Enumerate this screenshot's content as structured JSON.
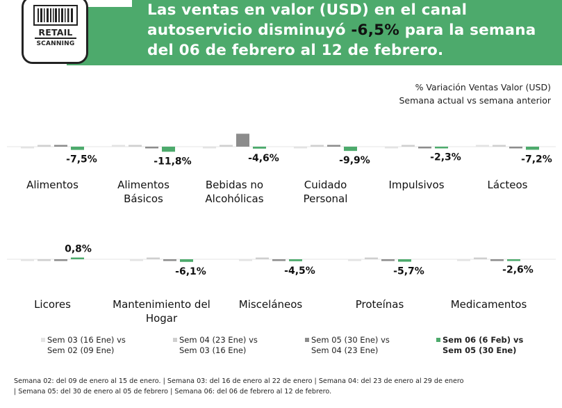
{
  "logo": {
    "line1": "RETAIL",
    "line2": "SCANNING"
  },
  "header": {
    "headline_before": "Las ventas en valor (USD) en el canal autoservicio disminuyó ",
    "headline_highlight": "-6,5%",
    "headline_after": " para la semana del 06 de febrero al 12 de febrero."
  },
  "subtitle": {
    "line1": "% Variación Ventas Valor (USD)",
    "line2": "Semana actual vs semana anterior"
  },
  "chart_data": {
    "type": "bar",
    "series": [
      {
        "name": "Sem 03 (16 Ene) vs Sem 02 (09 Ene)",
        "color": "#e3e3e3"
      },
      {
        "name": "Sem 04 (23 Ene) vs Sem 03 (16 Ene)",
        "color": "#cfcfcf"
      },
      {
        "name": "Sem 05 (30 Ene) vs Sem 04 (23 Ene)",
        "color": "#8c8c8c"
      },
      {
        "name": "Sem 06 (6 Feb) vs Sem 05 (30 Ene)",
        "color": "#4daa6c"
      }
    ],
    "panels": [
      {
        "categories": [
          {
            "label": [
              "Alimentos"
            ],
            "values": [
              -1.0,
              0.5,
              2.0,
              -7.5
            ],
            "data_label": "-7,5%"
          },
          {
            "label": [
              "Alimentos",
              "Básicos"
            ],
            "values": [
              2.5,
              1.0,
              -0.5,
              -11.8
            ],
            "data_label": "-11,8%"
          },
          {
            "label": [
              "Bebidas no",
              "Alcohólicas"
            ],
            "values": [
              -1.5,
              2.0,
              30.0,
              -4.6
            ],
            "data_label": "-4,6%"
          },
          {
            "label": [
              "Cuidado",
              "Personal"
            ],
            "values": [
              -3.5,
              2.0,
              0.5,
              -9.9
            ],
            "data_label": "-9,9%"
          },
          {
            "label": [
              "Impulsivos"
            ],
            "values": [
              -1.0,
              2.0,
              -2.5,
              -2.3
            ],
            "data_label": "-2,3%"
          },
          {
            "label": [
              "Lácteos"
            ],
            "values": [
              0.3,
              1.0,
              -4.0,
              -7.2
            ],
            "data_label": "-7,2%"
          }
        ]
      },
      {
        "categories": [
          {
            "label": [
              "Licores"
            ],
            "values": [
              -1.5,
              -0.5,
              -2.5,
              0.8
            ],
            "data_label": "0,8%"
          },
          {
            "label": [
              "Mantenimiento del",
              "Hogar"
            ],
            "values": [
              -3.5,
              1.5,
              -3.5,
              -6.1
            ],
            "data_label": "-6,1%"
          },
          {
            "label": [
              "Misceláneos"
            ],
            "values": [
              -1.5,
              1.0,
              -3.0,
              -4.5
            ],
            "data_label": "-4,5%"
          },
          {
            "label": [
              "Proteínas"
            ],
            "values": [
              -1.0,
              0.5,
              -3.0,
              -5.7
            ],
            "data_label": "-5,7%"
          },
          {
            "label": [
              "Medicamentos"
            ],
            "values": [
              -0.5,
              1.0,
              -3.5,
              -2.6
            ],
            "data_label": "-2,6%"
          }
        ]
      }
    ]
  },
  "legend": [
    {
      "line1": "Sem 03 (16 Ene) vs",
      "line2": "Sem 02 (09 Ene)",
      "color": "#e3e3e3",
      "bold": false
    },
    {
      "line1": "Sem 04 (23 Ene) vs",
      "line2": "Sem 03 (16 Ene)",
      "color": "#cfcfcf",
      "bold": false
    },
    {
      "line1": "Sem 05 (30 Ene) vs",
      "line2": "Sem 04 (23 Ene)",
      "color": "#8c8c8c",
      "bold": false
    },
    {
      "line1": "Sem 06 (6 Feb) vs",
      "line2": "Sem 05 (30 Ene)",
      "color": "#4daa6c",
      "bold": true
    }
  ],
  "footnote": {
    "line1": "Semana 02: del 09 de enero al 15 de enero.  | Semana 03: del 16 de enero al 22 de enero | Semana 04: del 23 de enero al 29 de enero",
    "line2": "| Semana 05: del 30 de enero al 05 de febrero | Semana 06: del 06 de febrero al 12 de febrero."
  }
}
